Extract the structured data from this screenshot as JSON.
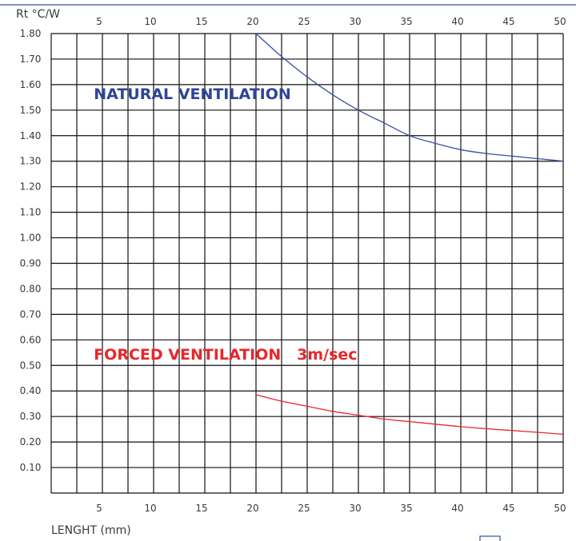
{
  "chart_data": {
    "type": "line",
    "title": "",
    "ylabel": "Rt °C/W",
    "xlabel": "LENGHT (mm)",
    "xlim": [
      0,
      50
    ],
    "ylim": [
      0,
      1.8
    ],
    "x_ticks": [
      "5",
      "10",
      "15",
      "20",
      "25",
      "30",
      "35",
      "40",
      "45",
      "50"
    ],
    "y_ticks": [
      "0.10",
      "0.20",
      "0.30",
      "0.40",
      "0.50",
      "0.60",
      "0.70",
      "0.80",
      "0.90",
      "1.00",
      "1.10",
      "1.20",
      "1.30",
      "1.40",
      "1.50",
      "1.60",
      "1.70",
      "1.80"
    ],
    "grid": true,
    "series": [
      {
        "name": "NATURAL VENTILATION",
        "color": "#3a4ea6",
        "x": [
          20,
          22.5,
          25,
          27.5,
          30,
          32.5,
          35,
          37.5,
          40,
          42.5,
          45,
          47.5,
          50
        ],
        "y": [
          1.8,
          1.71,
          1.63,
          1.56,
          1.5,
          1.45,
          1.4,
          1.37,
          1.345,
          1.33,
          1.32,
          1.31,
          1.3
        ]
      },
      {
        "name": "FORCED VENTILATION   3m/sec",
        "color": "#e8262a",
        "x": [
          20,
          22.5,
          25,
          27.5,
          30,
          32.5,
          35,
          37.5,
          40,
          42.5,
          45,
          47.5,
          50
        ],
        "y": [
          0.385,
          0.36,
          0.34,
          0.32,
          0.305,
          0.29,
          0.28,
          0.27,
          0.26,
          0.252,
          0.245,
          0.238,
          0.23
        ]
      }
    ],
    "annotations": [
      {
        "text": "NATURAL VENTILATION",
        "color": "#2e4496",
        "x": 4,
        "y": 1.54
      },
      {
        "text": "FORCED VENTILATION   3m/sec",
        "color": "#e8262a",
        "x": 4,
        "y": 0.52
      }
    ]
  }
}
